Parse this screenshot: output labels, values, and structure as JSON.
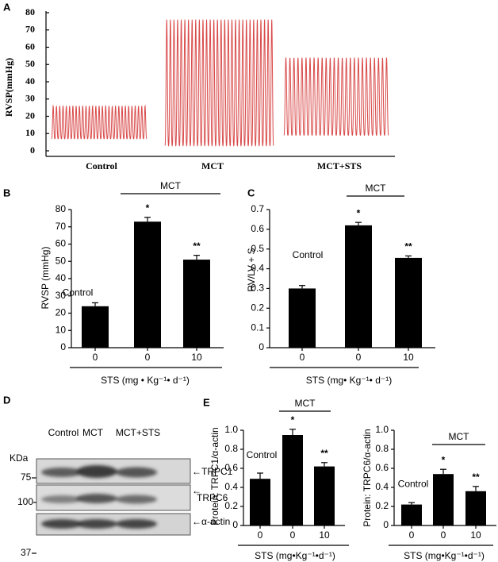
{
  "panel_labels": [
    "A",
    "B",
    "C",
    "D",
    "E"
  ],
  "chart_data": [
    {
      "type": "line",
      "ylabel": "RVSP(mmHg)",
      "categories": [
        "Control",
        "MCT",
        "MCT+STS"
      ],
      "ranges": [
        [
          7,
          26
        ],
        [
          3,
          76
        ],
        [
          9,
          54
        ]
      ],
      "color": "#d94a4a",
      "ylim": [
        0,
        80
      ],
      "yticks": [
        0,
        10,
        20,
        30,
        40,
        50,
        60,
        70,
        80
      ]
    },
    {
      "type": "bar",
      "ylabel": "RVSP (mmHg)",
      "xlabel": "STS (mg • Kg⁻¹• d⁻¹)",
      "categories": [
        "0",
        "0",
        "10"
      ],
      "values": [
        24,
        73,
        51
      ],
      "errors": [
        2,
        2.5,
        2.5
      ],
      "bar_labels": [
        "Control",
        "*",
        "**"
      ],
      "bracket_label": "MCT",
      "color": "#000000",
      "ylim": [
        0,
        80
      ],
      "yticks": [
        0,
        10,
        20,
        30,
        40,
        50,
        60,
        70,
        80
      ]
    },
    {
      "type": "bar",
      "ylabel": "RV/LV + S",
      "xlabel": "STS (mg• Kg⁻¹• d⁻¹)",
      "categories": [
        "0",
        "0",
        "10"
      ],
      "values": [
        0.3,
        0.62,
        0.455
      ],
      "errors": [
        0.015,
        0.015,
        0.01
      ],
      "bar_labels": [
        "Control",
        "*",
        "**"
      ],
      "bracket_label": "MCT",
      "color": "#000000",
      "ylim": [
        0,
        0.7
      ],
      "yticks": [
        0,
        0.1,
        0.2,
        0.3,
        0.4,
        0.5,
        0.6,
        0.7
      ]
    },
    {
      "type": "bar",
      "ylabel": "Protein: TRPC1/α-actin",
      "xlabel": "STS (mg•Kg⁻¹•d⁻¹)",
      "categories": [
        "0",
        "0",
        "10"
      ],
      "values": [
        0.49,
        0.95,
        0.62
      ],
      "errors": [
        0.06,
        0.06,
        0.04
      ],
      "bar_labels": [
        "Control",
        "*",
        "**"
      ],
      "bracket_label": "MCT",
      "color": "#000000",
      "ylim": [
        0,
        1
      ],
      "yticks": [
        0,
        0.2,
        0.4,
        0.6,
        0.8,
        {
          "value": 1,
          "label": "1.0"
        }
      ]
    },
    {
      "type": "bar",
      "ylabel": "Protein: TRPC6/α-actin",
      "xlabel": "STS (mg•Kg⁻¹•d⁻¹)",
      "categories": [
        "0",
        "0",
        "10"
      ],
      "values": [
        0.22,
        0.54,
        0.36
      ],
      "errors": [
        0.02,
        0.05,
        0.05
      ],
      "bar_labels": [
        "Control",
        "*",
        "**"
      ],
      "bracket_label": "MCT",
      "color": "#000000",
      "ylim": [
        0,
        1
      ],
      "yticks": [
        0,
        0.2,
        0.4,
        0.6,
        0.8,
        {
          "value": 1,
          "label": "1.0"
        }
      ]
    }
  ],
  "blot": {
    "unit": "KDa",
    "lanes": [
      "Control",
      "MCT",
      "MCT+STS"
    ],
    "markers": [
      "75",
      "100",
      "37"
    ],
    "proteins": [
      "←TRPC1",
      "TRPC6",
      "←α-actin"
    ]
  }
}
